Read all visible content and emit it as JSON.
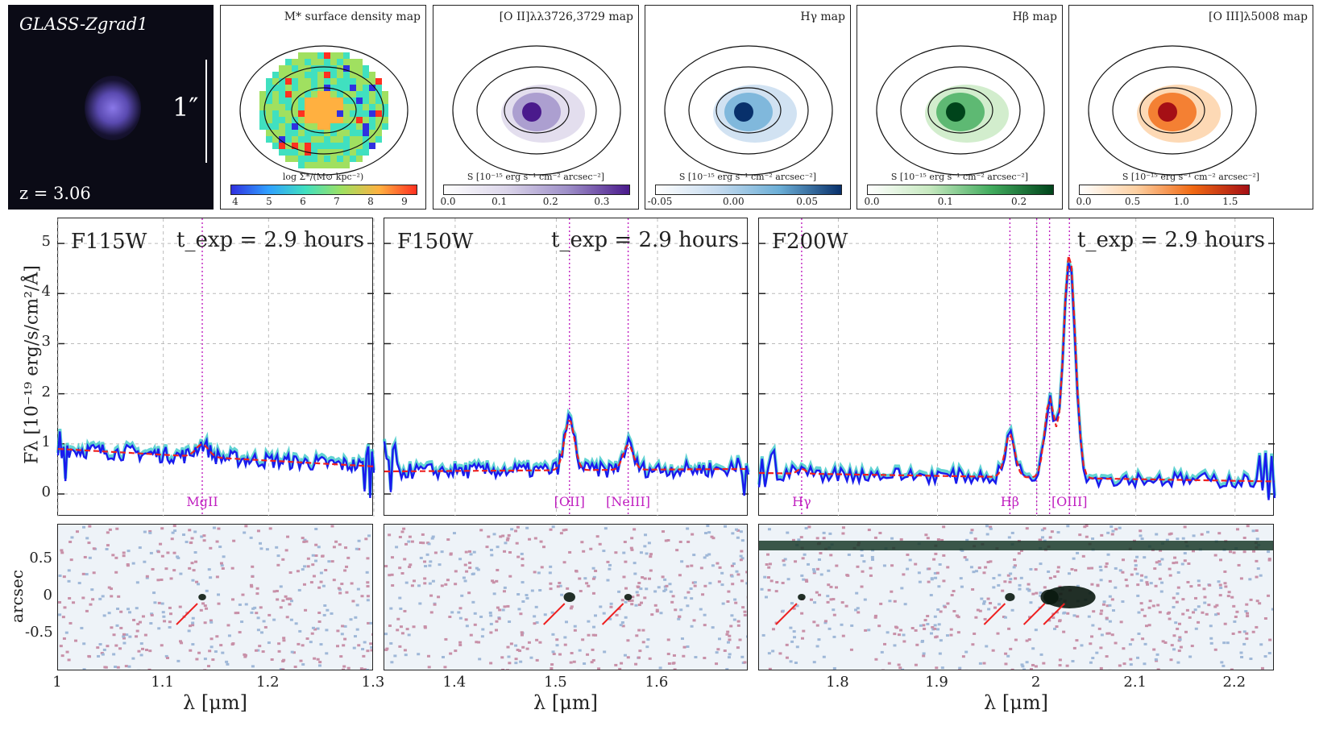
{
  "galaxy": {
    "name": "GLASS-Zgrad1",
    "redshift": "z = 3.06",
    "scale": "1″"
  },
  "maps": [
    {
      "title": "M* surface density map",
      "cbar_label": "log Σ*/(M⊙ kpc⁻²)",
      "ticks": [
        "4",
        "5",
        "6",
        "7",
        "8",
        "9"
      ],
      "cmap": [
        "#3030e0",
        "#30a0ff",
        "#40e0c0",
        "#a0e060",
        "#ffb040",
        "#ff3020"
      ]
    },
    {
      "title": "[O II]λλ3726,3729 map",
      "cbar_label": "S [10⁻¹⁵ erg s⁻¹ cm⁻² arcsec⁻²]",
      "ticks": [
        "0.0",
        "0.1",
        "0.2",
        "0.3"
      ],
      "cmap": [
        "#ffffff",
        "#dcd6ea",
        "#9e8fc8",
        "#4a1a8c"
      ]
    },
    {
      "title": "Hγ map",
      "cbar_label": "S [10⁻¹⁵ erg s⁻¹ cm⁻² arcsec⁻²]",
      "ticks": [
        "-0.05",
        "0.00",
        "0.05"
      ],
      "cmap": [
        "#ffffff",
        "#c6dbef",
        "#6baed6",
        "#08306b"
      ]
    },
    {
      "title": "Hβ map",
      "cbar_label": "S [10⁻¹⁵ erg s⁻¹ cm⁻² arcsec⁻²]",
      "ticks": [
        "0.0",
        "0.1",
        "0.2"
      ],
      "cmap": [
        "#ffffff",
        "#c7e9c0",
        "#41ab5d",
        "#00441b"
      ]
    },
    {
      "title": "[O III]λ5008 map",
      "cbar_label": "S [10⁻¹⁵ erg s⁻¹ cm⁻² arcsec⁻²]",
      "ticks": [
        "0.0",
        "0.5",
        "1.0",
        "1.5"
      ],
      "cmap": [
        "#ffffff",
        "#fdd0a2",
        "#f16913",
        "#a50f15"
      ]
    }
  ],
  "axes": {
    "ylabel": "Fλ [10⁻¹⁹ erg/s/cm²/Å]",
    "yticks": [
      "0",
      "1",
      "2",
      "3",
      "4",
      "5"
    ],
    "xlabel": "λ [μm]",
    "twod_ylabel": "arcsec",
    "twod_yticks": [
      "0.5",
      "0",
      "-0.5"
    ]
  },
  "chart_data": [
    {
      "type": "line",
      "filter": "F115W",
      "texp": "t_exp = 2.9 hours",
      "xlim": [
        1.0,
        1.3
      ],
      "ylim": [
        -0.45,
        5.5
      ],
      "xticks": [
        "1",
        "1.1",
        "1.2",
        "1.3"
      ],
      "continuum": {
        "x": [
          1.0,
          1.3
        ],
        "y": [
          0.9,
          0.55
        ]
      },
      "lines": [
        {
          "name": "MgII",
          "x": 1.137,
          "amp": 0.25,
          "width": 0.006
        }
      ]
    },
    {
      "type": "line",
      "filter": "F150W",
      "texp": "t_exp = 2.9 hours",
      "xlim": [
        1.33,
        1.69
      ],
      "ylim": [
        -0.45,
        5.5
      ],
      "xticks": [
        "1.4",
        "1.5",
        "1.6"
      ],
      "continuum": {
        "x": [
          1.33,
          1.69
        ],
        "y": [
          0.45,
          0.5
        ]
      },
      "lines": [
        {
          "name": "[OII]",
          "x": 1.513,
          "amp": 1.0,
          "width": 0.005
        },
        {
          "name": "[NeIII]",
          "x": 1.571,
          "amp": 0.5,
          "width": 0.005
        }
      ]
    },
    {
      "type": "line",
      "filter": "F200W",
      "texp": "t_exp = 2.9 hours",
      "xlim": [
        1.72,
        2.24
      ],
      "ylim": [
        -0.45,
        5.5
      ],
      "xticks": [
        "1.8",
        "1.9",
        "2",
        "2.1",
        "2.2"
      ],
      "continuum": {
        "x": [
          1.72,
          2.24
        ],
        "y": [
          0.42,
          0.25
        ]
      },
      "lines": [
        {
          "name": "Hγ",
          "x": 1.763,
          "amp": 0.1,
          "width": 0.004
        },
        {
          "name": "Hβ",
          "x": 1.973,
          "amp": 0.85,
          "width": 0.005
        },
        {
          "name": "[OIII]",
          "x": 2.013,
          "amp": 1.55,
          "width": 0.005
        },
        {
          "name": "[OIII]",
          "x": 2.033,
          "amp": 4.5,
          "width": 0.006
        }
      ],
      "label_lines": [
        {
          "name": "Hγ",
          "x": 1.763
        },
        {
          "name": "Hβ",
          "x": 1.973
        },
        {
          "name": "[OIII]",
          "x": 2.033
        }
      ],
      "extra_markers": [
        2.0,
        2.013
      ]
    }
  ]
}
